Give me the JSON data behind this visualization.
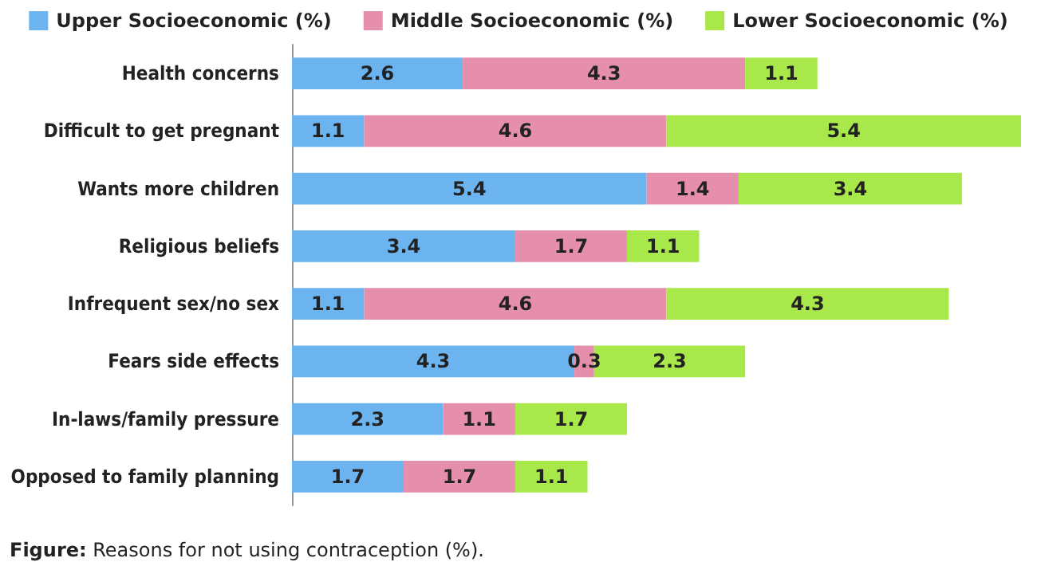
{
  "chart_data": {
    "type": "bar",
    "orientation": "horizontal",
    "stacked": true,
    "data_labels": true,
    "legend": "top",
    "categories": [
      "Health concerns",
      "Difficult to get pregnant",
      "Wants more children",
      "Religious beliefs",
      "Infrequent sex/no sex",
      "Fears side effects",
      "In-laws/family pressure",
      "Opposed to family planning"
    ],
    "series": [
      {
        "name": "Upper Socioeconomic (%)",
        "color": "#6cb4f0",
        "values": [
          2.6,
          1.1,
          5.4,
          3.4,
          1.1,
          4.3,
          2.3,
          1.7
        ]
      },
      {
        "name": "Middle Socioeconomic (%)",
        "color": "#e68fac",
        "values": [
          4.3,
          4.6,
          1.4,
          1.7,
          4.6,
          0.3,
          1.1,
          1.7
        ]
      },
      {
        "name": "Lower Socioeconomic (%)",
        "color": "#a9e84a",
        "values": [
          1.1,
          5.4,
          3.4,
          1.1,
          4.3,
          2.3,
          1.7,
          1.1
        ]
      }
    ],
    "annotations": [
      "Figure: Reasons for not using contraception (%)."
    ]
  }
}
